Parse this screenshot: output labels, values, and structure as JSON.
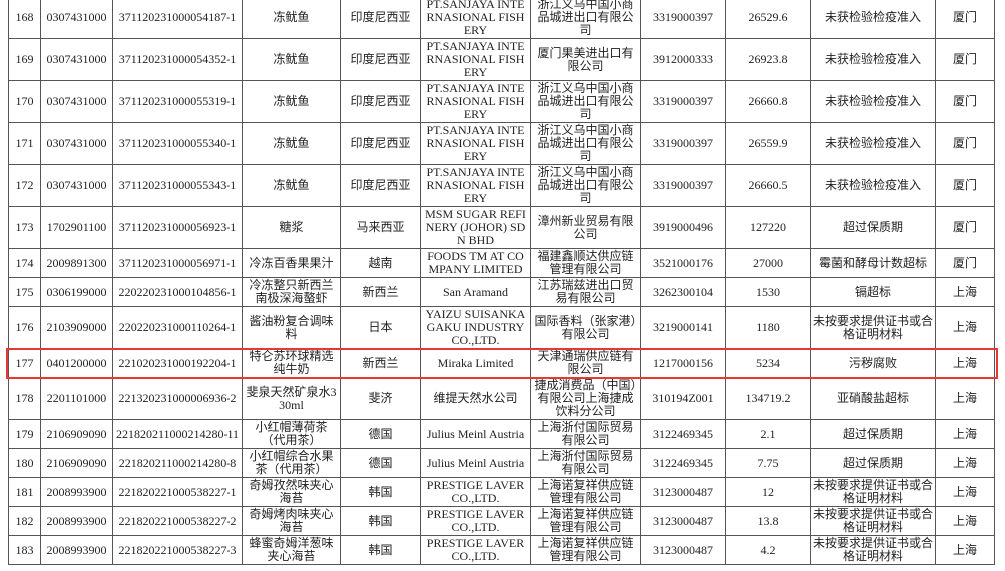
{
  "table": {
    "rows": [
      [
        "168",
        "0307431000",
        "371120231000054187-1",
        "冻鱿鱼",
        "印度尼西亚",
        "PT.SANJAYA INTERNASIONAL FISHERY",
        "浙江义乌中国小商品城进出口有限公司",
        "3319000397",
        "26529.6",
        "未获检验检疫准入",
        "厦门"
      ],
      [
        "169",
        "0307431000",
        "371120231000054352-1",
        "冻鱿鱼",
        "印度尼西亚",
        "PT.SANJAYA INTERNASIONAL FISHERY",
        "厦门果美进出口有限公司",
        "3912000333",
        "26923.8",
        "未获检验检疫准入",
        "厦门"
      ],
      [
        "170",
        "0307431000",
        "371120231000055319-1",
        "冻鱿鱼",
        "印度尼西亚",
        "PT.SANJAYA INTERNASIONAL FISHERY",
        "浙江义乌中国小商品城进出口有限公司",
        "3319000397",
        "26660.8",
        "未获检验检疫准入",
        "厦门"
      ],
      [
        "171",
        "0307431000",
        "371120231000055340-1",
        "冻鱿鱼",
        "印度尼西亚",
        "PT.SANJAYA INTERNASIONAL FISHERY",
        "浙江义乌中国小商品城进出口有限公司",
        "3319000397",
        "26559.9",
        "未获检验检疫准入",
        "厦门"
      ],
      [
        "172",
        "0307431000",
        "371120231000055343-1",
        "冻鱿鱼",
        "印度尼西亚",
        "PT.SANJAYA INTERNASIONAL FISHERY",
        "浙江义乌中国小商品城进出口有限公司",
        "3319000397",
        "26660.5",
        "未获检验检疫准入",
        "厦门"
      ],
      [
        "173",
        "1702901100",
        "371120231000056923-1",
        "糖浆",
        "马来西亚",
        "MSM SUGAR REFINERY (JOHOR) SDN BHD",
        "漳州新业贸易有限公司",
        "3919000496",
        "127220",
        "超过保质期",
        "厦门"
      ],
      [
        "174",
        "2009891300",
        "371120231000056971-1",
        "冷冻百香果果汁",
        "越南",
        "FOODS TM AT COMPANY LIMITED",
        "福建鑫顺达供应链管理有限公司",
        "3521000176",
        "27000",
        "霉菌和酵母计数超标",
        "厦门"
      ],
      [
        "175",
        "0306199000",
        "220220231000104856-1",
        "冷冻整只新西兰南极深海螯虾",
        "新西兰",
        "San Aramand",
        "江苏瑞兹进出口贸易有限公司",
        "3262300104",
        "1530",
        "镉超标",
        "上海"
      ],
      [
        "176",
        "2103909000",
        "220220231000110264-1",
        "酱油粉复合调味料",
        "日本",
        "YAIZU SUISANKAGAKU INDUSTRY CO.,LTD.",
        "国际香料（张家港）有限公司",
        "3219000141",
        "1180",
        "未按要求提供证书或合格证明材料",
        "上海"
      ],
      [
        "177",
        "0401200000",
        "221020231000192204-1",
        "特仑苏环球精选纯牛奶",
        "新西兰",
        "Miraka Limited",
        "天津通瑞供应链有限公司",
        "1217000156",
        "5234",
        "污秽腐败",
        "上海"
      ],
      [
        "178",
        "2201101000",
        "221320231000006936-2",
        "斐泉天然矿泉水330ml",
        "斐济",
        "维提天然水公司",
        "捷成消费品（中国）有限公司上海捷成饮料分公司",
        "310194Z001",
        "134719.2",
        "亚硝酸盐超标",
        "上海"
      ],
      [
        "179",
        "2106909090",
        "221820211000214280-11",
        "小红帽薄荷茶（代用茶）",
        "德国",
        "Julius Meinl Austria",
        "上海浙付国际贸易有限公司",
        "3122469345",
        "2.1",
        "超过保质期",
        "上海"
      ],
      [
        "180",
        "2106909090",
        "221820211000214280-8",
        "小红帽综合水果茶（代用茶）",
        "德国",
        "Julius Meinl Austria",
        "上海浙付国际贸易有限公司",
        "3122469345",
        "7.75",
        "超过保质期",
        "上海"
      ],
      [
        "181",
        "2008993900",
        "221820221000538227-1",
        "奇姆孜然味夹心海苔",
        "韩国",
        "PRESTIGE LAVER CO.,LTD.",
        "上海诺复祥供应链管理有限公司",
        "3123000487",
        "12",
        "未按要求提供证书或合格证明材料",
        "上海"
      ],
      [
        "182",
        "2008993900",
        "221820221000538227-2",
        "奇姆烤肉味夹心海苔",
        "韩国",
        "PRESTIGE LAVER CO.,LTD.",
        "上海诺复祥供应链管理有限公司",
        "3123000487",
        "13.8",
        "未按要求提供证书或合格证明材料",
        "上海"
      ],
      [
        "183",
        "2008993900",
        "221820221000538227-3",
        "蜂蜜奇姆洋葱味夹心海苔",
        "韩国",
        "PRESTIGE LAVER CO.,LTD.",
        "上海诺复祥供应链管理有限公司",
        "3123000487",
        "4.2",
        "未按要求提供证书或合格证明材料",
        "上海"
      ]
    ]
  }
}
